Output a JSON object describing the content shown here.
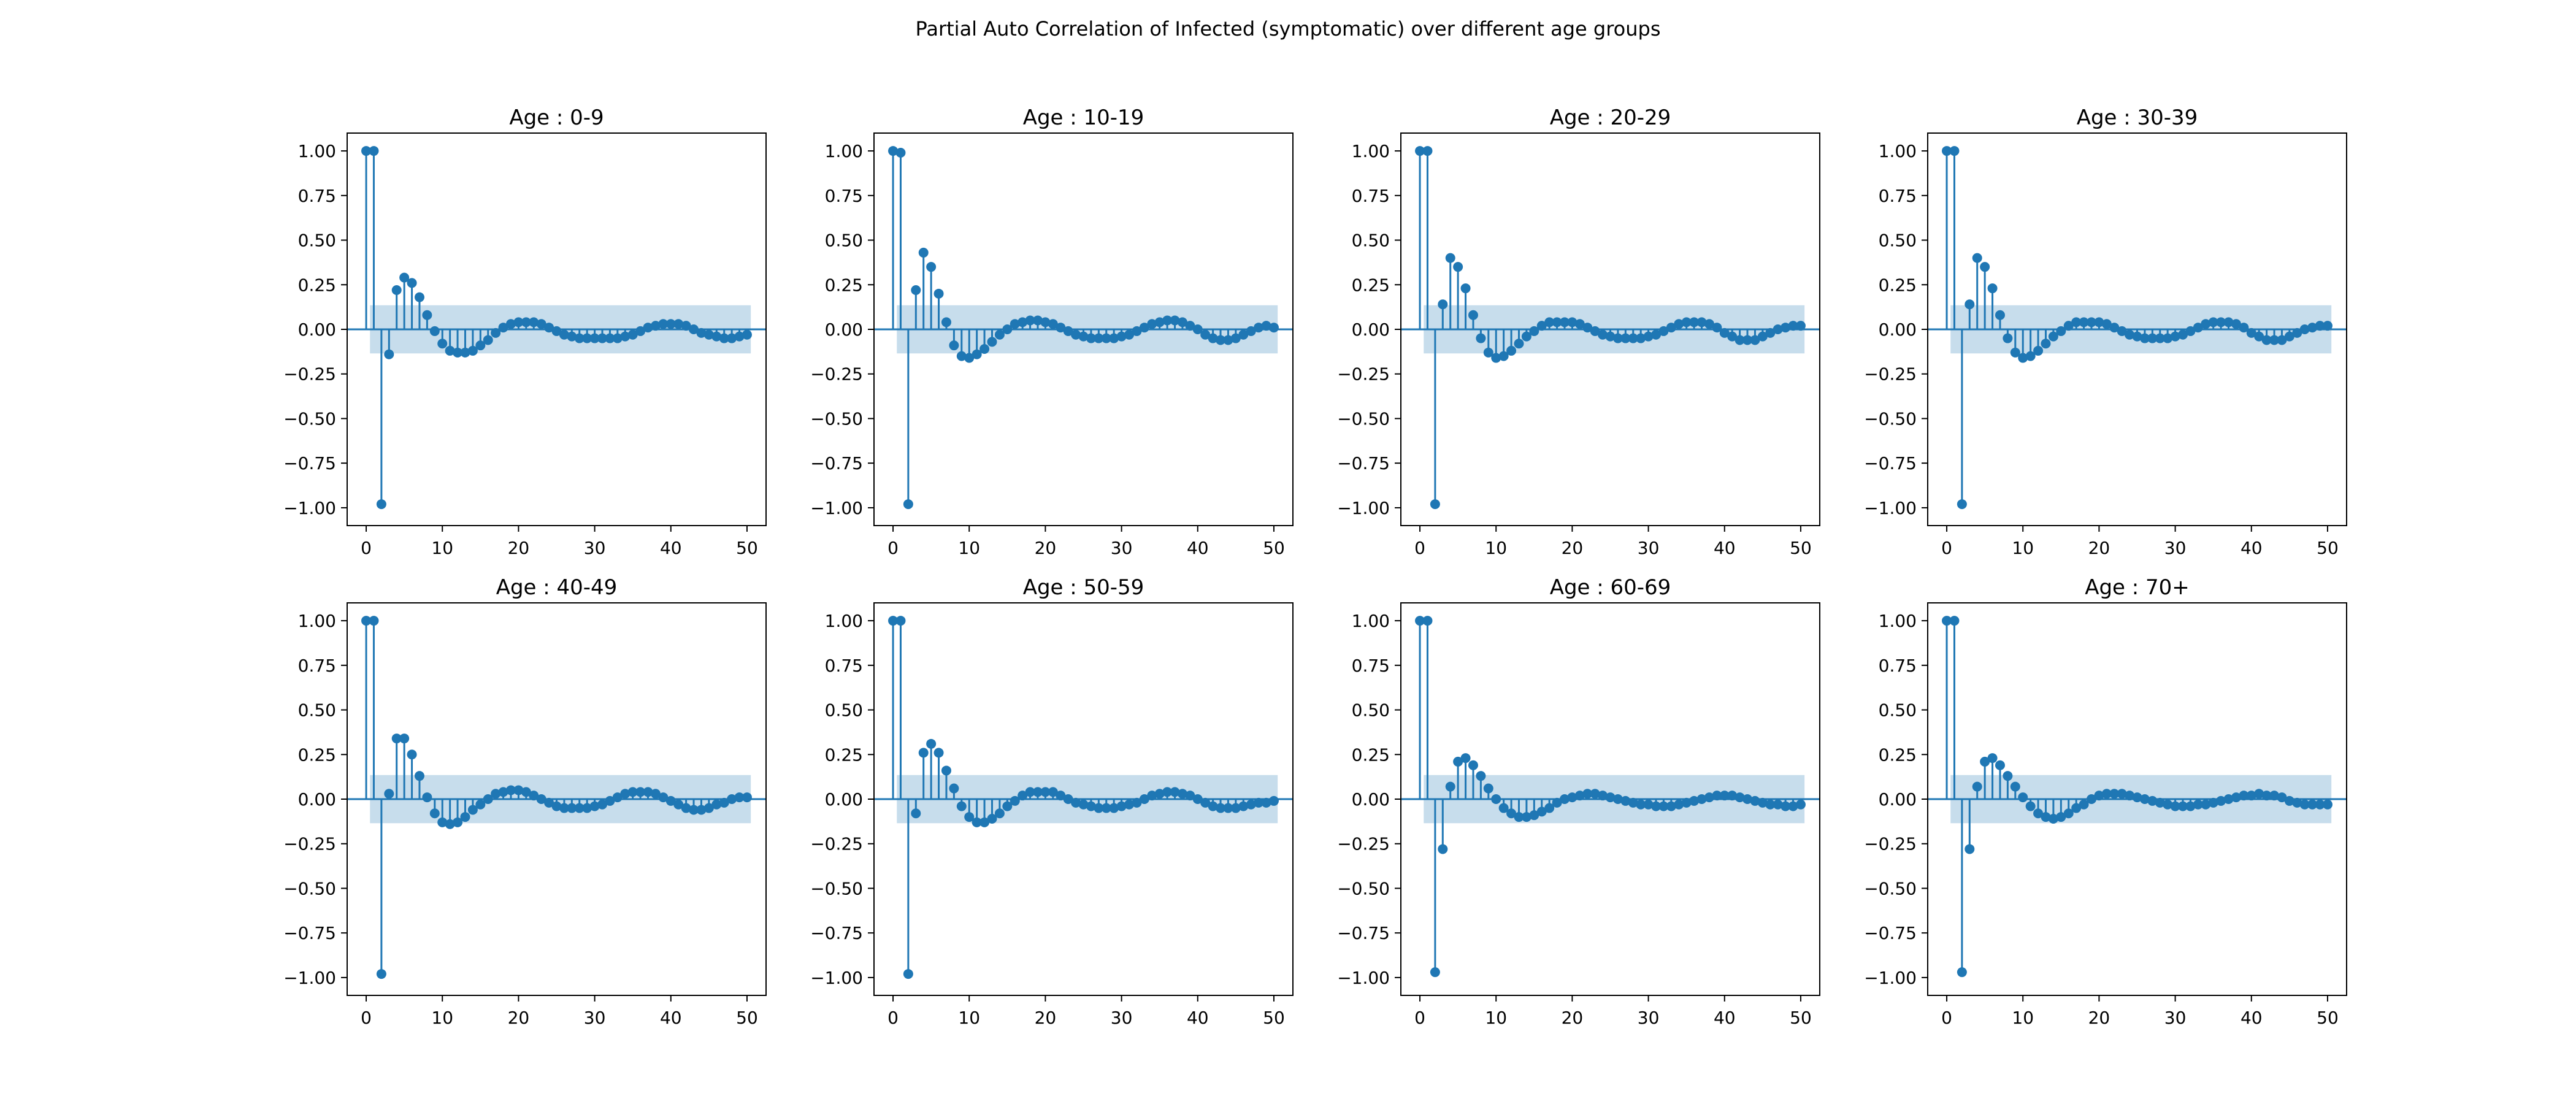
{
  "figure": {
    "title": "Partial Auto Correlation of Infected (symptomatic) over different age groups"
  },
  "style": {
    "stem_color": "#1f77b4",
    "band_color": "#1f77b4",
    "band_opacity": 0.25
  },
  "chart_data": [
    {
      "type": "stem",
      "title": "Age : 0-9",
      "xlim": [
        -2.5,
        52.5
      ],
      "ylim": [
        -1.1,
        1.1
      ],
      "xticks": [
        0,
        10,
        20,
        30,
        40,
        50
      ],
      "yticks": [
        1.0,
        0.75,
        0.5,
        0.25,
        0.0,
        -0.25,
        -0.5,
        -0.75,
        -1.0
      ],
      "ytick_labels": [
        "1.00",
        "0.75",
        "0.50",
        "0.25",
        "0.00",
        "−0.25",
        "−0.50",
        "−0.75",
        "−1.00"
      ],
      "confidence_band": [
        -0.135,
        0.135
      ],
      "values": [
        1.0,
        1.0,
        -0.98,
        -0.14,
        0.22,
        0.29,
        0.26,
        0.18,
        0.08,
        -0.01,
        -0.08,
        -0.12,
        -0.13,
        -0.13,
        -0.12,
        -0.09,
        -0.06,
        -0.02,
        0.01,
        0.03,
        0.04,
        0.04,
        0.04,
        0.03,
        0.01,
        -0.01,
        -0.03,
        -0.04,
        -0.05,
        -0.05,
        -0.05,
        -0.05,
        -0.05,
        -0.05,
        -0.04,
        -0.03,
        -0.01,
        0.01,
        0.02,
        0.03,
        0.03,
        0.03,
        0.02,
        0.0,
        -0.02,
        -0.03,
        -0.04,
        -0.05,
        -0.05,
        -0.04,
        -0.03
      ]
    },
    {
      "type": "stem",
      "title": "Age : 10-19",
      "xlim": [
        -2.5,
        52.5
      ],
      "ylim": [
        -1.1,
        1.1
      ],
      "xticks": [
        0,
        10,
        20,
        30,
        40,
        50
      ],
      "yticks": [
        1.0,
        0.75,
        0.5,
        0.25,
        0.0,
        -0.25,
        -0.5,
        -0.75,
        -1.0
      ],
      "ytick_labels": [
        "1.00",
        "0.75",
        "0.50",
        "0.25",
        "0.00",
        "−0.25",
        "−0.50",
        "−0.75",
        "−1.00"
      ],
      "confidence_band": [
        -0.135,
        0.135
      ],
      "values": [
        1.0,
        0.99,
        -0.98,
        0.22,
        0.43,
        0.35,
        0.2,
        0.04,
        -0.09,
        -0.15,
        -0.16,
        -0.14,
        -0.11,
        -0.07,
        -0.03,
        0.0,
        0.03,
        0.04,
        0.05,
        0.05,
        0.04,
        0.03,
        0.01,
        -0.01,
        -0.03,
        -0.04,
        -0.05,
        -0.05,
        -0.05,
        -0.05,
        -0.04,
        -0.03,
        -0.01,
        0.01,
        0.03,
        0.04,
        0.05,
        0.05,
        0.04,
        0.02,
        0.0,
        -0.03,
        -0.05,
        -0.06,
        -0.06,
        -0.05,
        -0.03,
        -0.01,
        0.01,
        0.02,
        0.01
      ]
    },
    {
      "type": "stem",
      "title": "Age : 20-29",
      "xlim": [
        -2.5,
        52.5
      ],
      "ylim": [
        -1.1,
        1.1
      ],
      "xticks": [
        0,
        10,
        20,
        30,
        40,
        50
      ],
      "yticks": [
        1.0,
        0.75,
        0.5,
        0.25,
        0.0,
        -0.25,
        -0.5,
        -0.75,
        -1.0
      ],
      "ytick_labels": [
        "1.00",
        "0.75",
        "0.50",
        "0.25",
        "0.00",
        "−0.25",
        "−0.50",
        "−0.75",
        "−1.00"
      ],
      "confidence_band": [
        -0.135,
        0.135
      ],
      "values": [
        1.0,
        1.0,
        -0.98,
        0.14,
        0.4,
        0.35,
        0.23,
        0.08,
        -0.05,
        -0.13,
        -0.16,
        -0.15,
        -0.12,
        -0.08,
        -0.04,
        -0.01,
        0.02,
        0.04,
        0.04,
        0.04,
        0.04,
        0.03,
        0.01,
        -0.01,
        -0.03,
        -0.04,
        -0.05,
        -0.05,
        -0.05,
        -0.05,
        -0.04,
        -0.03,
        -0.01,
        0.01,
        0.03,
        0.04,
        0.04,
        0.04,
        0.03,
        0.01,
        -0.02,
        -0.04,
        -0.06,
        -0.06,
        -0.06,
        -0.04,
        -0.02,
        0.0,
        0.01,
        0.02,
        0.02
      ]
    },
    {
      "type": "stem",
      "title": "Age : 30-39",
      "xlim": [
        -2.5,
        52.5
      ],
      "ylim": [
        -1.1,
        1.1
      ],
      "xticks": [
        0,
        10,
        20,
        30,
        40,
        50
      ],
      "yticks": [
        1.0,
        0.75,
        0.5,
        0.25,
        0.0,
        -0.25,
        -0.5,
        -0.75,
        -1.0
      ],
      "ytick_labels": [
        "1.00",
        "0.75",
        "0.50",
        "0.25",
        "0.00",
        "−0.25",
        "−0.50",
        "−0.75",
        "−1.00"
      ],
      "confidence_band": [
        -0.135,
        0.135
      ],
      "values": [
        1.0,
        1.0,
        -0.98,
        0.14,
        0.4,
        0.35,
        0.23,
        0.08,
        -0.05,
        -0.13,
        -0.16,
        -0.15,
        -0.12,
        -0.08,
        -0.04,
        -0.01,
        0.02,
        0.04,
        0.04,
        0.04,
        0.04,
        0.03,
        0.01,
        -0.01,
        -0.03,
        -0.04,
        -0.05,
        -0.05,
        -0.05,
        -0.05,
        -0.04,
        -0.03,
        -0.01,
        0.01,
        0.03,
        0.04,
        0.04,
        0.04,
        0.03,
        0.01,
        -0.02,
        -0.04,
        -0.06,
        -0.06,
        -0.06,
        -0.04,
        -0.02,
        0.0,
        0.01,
        0.02,
        0.02
      ]
    },
    {
      "type": "stem",
      "title": "Age : 40-49",
      "xlim": [
        -2.5,
        52.5
      ],
      "ylim": [
        -1.1,
        1.1
      ],
      "xticks": [
        0,
        10,
        20,
        30,
        40,
        50
      ],
      "yticks": [
        1.0,
        0.75,
        0.5,
        0.25,
        0.0,
        -0.25,
        -0.5,
        -0.75,
        -1.0
      ],
      "ytick_labels": [
        "1.00",
        "0.75",
        "0.50",
        "0.25",
        "0.00",
        "−0.25",
        "−0.50",
        "−0.75",
        "−1.00"
      ],
      "confidence_band": [
        -0.135,
        0.135
      ],
      "values": [
        1.0,
        1.0,
        -0.98,
        0.03,
        0.34,
        0.34,
        0.25,
        0.13,
        0.01,
        -0.08,
        -0.13,
        -0.14,
        -0.13,
        -0.1,
        -0.06,
        -0.03,
        0.0,
        0.03,
        0.04,
        0.05,
        0.05,
        0.04,
        0.02,
        0.0,
        -0.02,
        -0.04,
        -0.05,
        -0.05,
        -0.05,
        -0.05,
        -0.04,
        -0.03,
        -0.01,
        0.01,
        0.03,
        0.04,
        0.04,
        0.04,
        0.03,
        0.01,
        -0.01,
        -0.03,
        -0.05,
        -0.06,
        -0.06,
        -0.05,
        -0.03,
        -0.02,
        0.0,
        0.01,
        0.01
      ]
    },
    {
      "type": "stem",
      "title": "Age : 50-59",
      "xlim": [
        -2.5,
        52.5
      ],
      "ylim": [
        -1.1,
        1.1
      ],
      "xticks": [
        0,
        10,
        20,
        30,
        40,
        50
      ],
      "yticks": [
        1.0,
        0.75,
        0.5,
        0.25,
        0.0,
        -0.25,
        -0.5,
        -0.75,
        -1.0
      ],
      "ytick_labels": [
        "1.00",
        "0.75",
        "0.50",
        "0.25",
        "0.00",
        "−0.25",
        "−0.50",
        "−0.75",
        "−1.00"
      ],
      "confidence_band": [
        -0.135,
        0.135
      ],
      "values": [
        1.0,
        1.0,
        -0.98,
        -0.08,
        0.26,
        0.31,
        0.26,
        0.16,
        0.06,
        -0.04,
        -0.1,
        -0.13,
        -0.13,
        -0.11,
        -0.08,
        -0.04,
        -0.01,
        0.02,
        0.04,
        0.04,
        0.04,
        0.04,
        0.02,
        0.0,
        -0.02,
        -0.03,
        -0.04,
        -0.05,
        -0.05,
        -0.05,
        -0.04,
        -0.03,
        -0.02,
        0.0,
        0.02,
        0.03,
        0.04,
        0.04,
        0.03,
        0.02,
        0.0,
        -0.02,
        -0.04,
        -0.05,
        -0.05,
        -0.05,
        -0.04,
        -0.03,
        -0.02,
        -0.02,
        -0.01
      ]
    },
    {
      "type": "stem",
      "title": "Age : 60-69",
      "xlim": [
        -2.5,
        52.5
      ],
      "ylim": [
        -1.1,
        1.1
      ],
      "xticks": [
        0,
        10,
        20,
        30,
        40,
        50
      ],
      "yticks": [
        1.0,
        0.75,
        0.5,
        0.25,
        0.0,
        -0.25,
        -0.5,
        -0.75,
        -1.0
      ],
      "ytick_labels": [
        "1.00",
        "0.75",
        "0.50",
        "0.25",
        "0.00",
        "−0.25",
        "−0.50",
        "−0.75",
        "−1.00"
      ],
      "confidence_band": [
        -0.135,
        0.135
      ],
      "values": [
        1.0,
        1.0,
        -0.97,
        -0.28,
        0.07,
        0.21,
        0.23,
        0.19,
        0.13,
        0.06,
        0.0,
        -0.05,
        -0.08,
        -0.1,
        -0.1,
        -0.09,
        -0.07,
        -0.05,
        -0.02,
        0.0,
        0.01,
        0.02,
        0.03,
        0.03,
        0.02,
        0.01,
        0.0,
        -0.01,
        -0.02,
        -0.03,
        -0.03,
        -0.04,
        -0.04,
        -0.04,
        -0.03,
        -0.02,
        -0.01,
        0.0,
        0.01,
        0.02,
        0.02,
        0.02,
        0.01,
        0.0,
        -0.01,
        -0.02,
        -0.03,
        -0.03,
        -0.04,
        -0.04,
        -0.03
      ]
    },
    {
      "type": "stem",
      "title": "Age : 70+",
      "xlim": [
        -2.5,
        52.5
      ],
      "ylim": [
        -1.1,
        1.1
      ],
      "xticks": [
        0,
        10,
        20,
        30,
        40,
        50
      ],
      "yticks": [
        1.0,
        0.75,
        0.5,
        0.25,
        0.0,
        -0.25,
        -0.5,
        -0.75,
        -1.0
      ],
      "ytick_labels": [
        "1.00",
        "0.75",
        "0.50",
        "0.25",
        "0.00",
        "−0.25",
        "−0.50",
        "−0.75",
        "−1.00"
      ],
      "confidence_band": [
        -0.135,
        0.135
      ],
      "values": [
        1.0,
        1.0,
        -0.97,
        -0.28,
        0.07,
        0.21,
        0.23,
        0.19,
        0.13,
        0.07,
        0.01,
        -0.04,
        -0.08,
        -0.1,
        -0.11,
        -0.1,
        -0.08,
        -0.05,
        -0.03,
        0.0,
        0.02,
        0.03,
        0.03,
        0.03,
        0.02,
        0.01,
        0.0,
        -0.01,
        -0.02,
        -0.03,
        -0.04,
        -0.04,
        -0.04,
        -0.03,
        -0.03,
        -0.02,
        -0.01,
        0.0,
        0.01,
        0.02,
        0.02,
        0.03,
        0.02,
        0.02,
        0.01,
        -0.01,
        -0.02,
        -0.03,
        -0.03,
        -0.03,
        -0.03
      ]
    }
  ]
}
